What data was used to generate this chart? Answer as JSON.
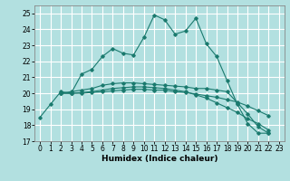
{
  "xlabel": "Humidex (Indice chaleur)",
  "background_color": "#b2e0e0",
  "grid_color": "#ffffff",
  "line_color": "#1a7a6e",
  "xlim": [
    -0.5,
    23.5
  ],
  "ylim": [
    17,
    25.5
  ],
  "yticks": [
    17,
    18,
    19,
    20,
    21,
    22,
    23,
    24,
    25
  ],
  "xticks": [
    0,
    1,
    2,
    3,
    4,
    5,
    6,
    7,
    8,
    9,
    10,
    11,
    12,
    13,
    14,
    15,
    16,
    17,
    18,
    19,
    20,
    21,
    22,
    23
  ],
  "series": [
    {
      "xstart": 0,
      "y": [
        18.5,
        19.3,
        20.1,
        20.0,
        21.2,
        21.5,
        22.3,
        22.8,
        22.5,
        22.4,
        23.5,
        24.9,
        24.6,
        23.7,
        23.9,
        24.7,
        23.1,
        22.3,
        20.8,
        19.3,
        18.1,
        17.5,
        17.5
      ]
    },
    {
      "xstart": 2,
      "y": [
        20.0,
        20.1,
        20.2,
        20.3,
        20.5,
        20.6,
        20.65,
        20.65,
        20.6,
        20.55,
        20.5,
        20.45,
        20.4,
        20.3,
        20.3,
        20.2,
        20.1,
        19.4,
        18.7,
        17.9,
        17.5
      ]
    },
    {
      "xstart": 2,
      "y": [
        20.0,
        20.0,
        20.05,
        20.1,
        20.2,
        20.3,
        20.35,
        20.4,
        20.4,
        20.35,
        20.3,
        20.2,
        20.1,
        19.9,
        19.7,
        19.4,
        19.1,
        18.8,
        18.4,
        18.1,
        17.7
      ]
    },
    {
      "xstart": 2,
      "y": [
        20.0,
        20.0,
        20.0,
        20.05,
        20.1,
        20.15,
        20.2,
        20.25,
        20.25,
        20.2,
        20.2,
        20.1,
        20.05,
        19.95,
        19.85,
        19.75,
        19.6,
        19.45,
        19.2,
        18.9,
        18.6
      ]
    }
  ]
}
